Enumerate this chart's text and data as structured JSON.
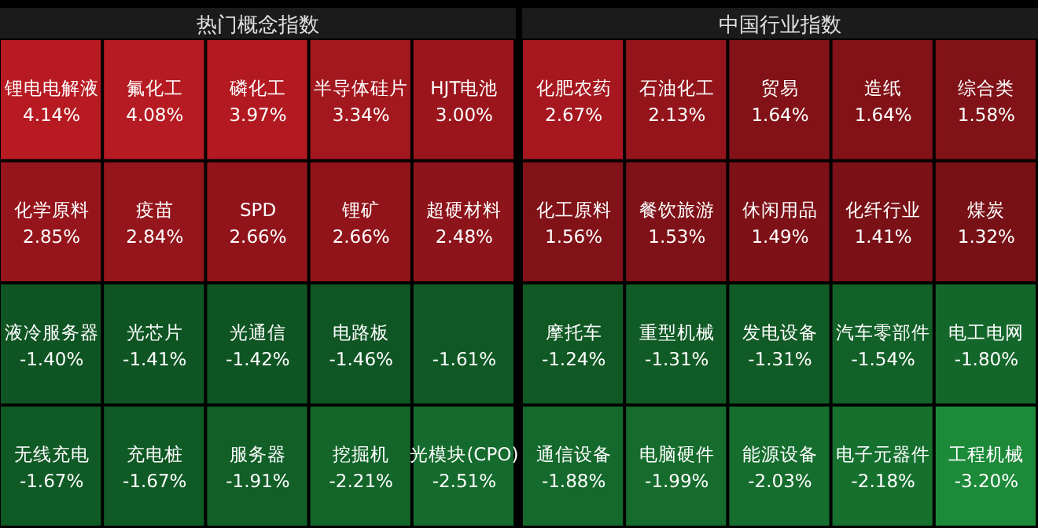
{
  "chart_data": [
    {
      "type": "other",
      "title": "热门概念指数",
      "categories": [
        "锂电电解液",
        "氟化工",
        "磷化工",
        "半导体硅片",
        "HJT电池",
        "化学原料",
        "疫苗",
        "SPD",
        "锂矿",
        "超硬材料",
        "液冷服务器",
        "光芯片",
        "光通信",
        "电路板",
        null,
        "无线充电",
        "充电桩",
        "服务器",
        "挖掘机",
        "光模块(CPO)"
      ],
      "values": [
        4.14,
        4.08,
        3.97,
        3.34,
        3.0,
        2.85,
        2.84,
        2.66,
        2.66,
        2.48,
        -1.4,
        -1.41,
        -1.42,
        -1.46,
        -1.61,
        -1.67,
        -1.67,
        -1.91,
        -2.21,
        -2.51
      ],
      "value_labels": [
        "4.14%",
        "4.08%",
        "3.97%",
        "3.34%",
        "3.00%",
        "2.85%",
        "2.84%",
        "2.66%",
        "2.66%",
        "2.48%",
        "-1.40%",
        "-1.41%",
        "-1.42%",
        "-1.46%",
        "-1.61%",
        "-1.67%",
        "-1.67%",
        "-1.91%",
        "-2.21%",
        "-2.51%"
      ]
    },
    {
      "type": "other",
      "title": "中国行业指数",
      "categories": [
        "化肥农药",
        "石油化工",
        "贸易",
        "造纸",
        "综合类",
        "化工原料",
        "餐饮旅游",
        "休闲用品",
        "化纤行业",
        "煤炭",
        "摩托车",
        "重型机械",
        "发电设备",
        "汽车零部件",
        "电工电网",
        "通信设备",
        "电脑硬件",
        "能源设备",
        "电子元器件",
        "工程机械"
      ],
      "values": [
        2.67,
        2.13,
        1.64,
        1.64,
        1.58,
        1.56,
        1.53,
        1.49,
        1.41,
        1.32,
        -1.24,
        -1.31,
        -1.31,
        -1.54,
        -1.8,
        -1.88,
        -1.99,
        -2.03,
        -2.18,
        -3.2
      ],
      "value_labels": [
        "2.67%",
        "2.13%",
        "1.64%",
        "1.64%",
        "1.58%",
        "1.56%",
        "1.53%",
        "1.49%",
        "1.41%",
        "1.32%",
        "-1.24%",
        "-1.31%",
        "-1.31%",
        "-1.54%",
        "-1.80%",
        "-1.88%",
        "-1.99%",
        "-2.03%",
        "-2.18%",
        "-3.20%"
      ]
    }
  ]
}
